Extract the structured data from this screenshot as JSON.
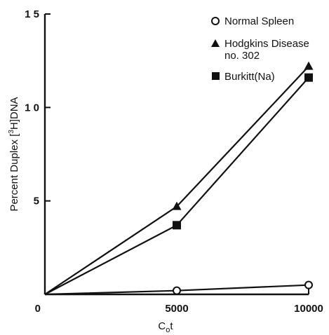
{
  "chart_data": {
    "type": "line",
    "title": "",
    "xlabel": "C",
    "xlabel_subscript": "o",
    "xlabel_suffix": "t",
    "ylabel_prefix": "Percent Duplex [",
    "ylabel_superscript": "3",
    "ylabel_suffix": "H]DNA",
    "xlim": [
      0,
      10000
    ],
    "ylim": [
      0,
      15
    ],
    "x_ticks": [
      0,
      5000,
      10000
    ],
    "x_tick_labels": [
      "0",
      "5000",
      "10000"
    ],
    "y_ticks": [
      5,
      10,
      15
    ],
    "y_tick_labels": [
      "5",
      "1 0",
      "1 5"
    ],
    "grid": false,
    "legend_position": "top-right",
    "series": [
      {
        "name": "Normal Spleen",
        "marker": "open-circle",
        "x": [
          0,
          5000,
          10000
        ],
        "y": [
          0,
          0.2,
          0.5
        ]
      },
      {
        "name": "Hodgkins Disease no. 302",
        "name_lines": [
          "Hodgkins Disease",
          "no. 302"
        ],
        "marker": "filled-triangle",
        "x": [
          0,
          5000,
          10000
        ],
        "y": [
          0,
          4.7,
          12.2
        ]
      },
      {
        "name": "Burkitt(Na)",
        "marker": "filled-square",
        "x": [
          0,
          5000,
          10000
        ],
        "y": [
          0,
          3.7,
          11.6
        ]
      }
    ]
  }
}
